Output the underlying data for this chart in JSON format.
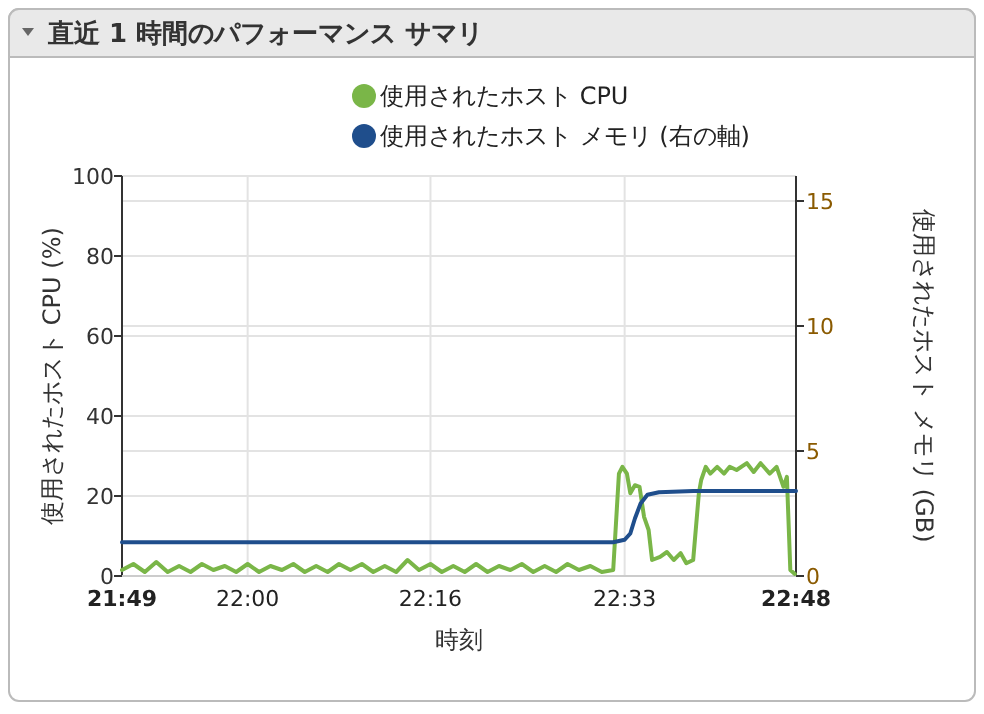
{
  "chart_data": {
    "type": "line",
    "title": "直近 1 時間のパフォーマンス サマリ",
    "xlabel": "時刻",
    "ylabel": "使用されたホスト CPU (%)",
    "y2label": "使用されたホスト メモリ (GB)",
    "xlim": [
      21.8167,
      22.8
    ],
    "xticks": [
      {
        "value": 21.8167,
        "label": "21:49"
      },
      {
        "value": 22.0,
        "label": "22:00"
      },
      {
        "value": 22.2667,
        "label": "22:16"
      },
      {
        "value": 22.55,
        "label": "22:33"
      },
      {
        "value": 22.8,
        "label": "22:48"
      }
    ],
    "ylim": [
      0,
      100
    ],
    "yticks": [
      0,
      20,
      40,
      60,
      80,
      100
    ],
    "y2lim": [
      0,
      16
    ],
    "y2ticks": [
      0,
      5,
      10,
      15
    ],
    "grid": true,
    "legend": "top",
    "series": [
      {
        "name": "使用されたホスト CPU",
        "color": "#7ab648",
        "x": [
          21.8167,
          21.8333,
          21.85,
          21.8667,
          21.8833,
          21.9,
          21.9167,
          21.9333,
          21.95,
          21.9667,
          21.9833,
          22.0,
          22.0167,
          22.0333,
          22.05,
          22.0667,
          22.0833,
          22.1,
          22.1167,
          22.1333,
          22.15,
          22.1667,
          22.1833,
          22.2,
          22.2167,
          22.2333,
          22.25,
          22.2667,
          22.2833,
          22.3,
          22.3167,
          22.3333,
          22.35,
          22.3667,
          22.3833,
          22.4,
          22.4167,
          22.4333,
          22.45,
          22.4667,
          22.4833,
          22.5,
          22.5167,
          22.5333,
          22.5417,
          22.5467,
          22.5533,
          22.5583,
          22.565,
          22.5717,
          22.5783,
          22.585,
          22.59,
          22.6017,
          22.6117,
          22.6217,
          22.6317,
          22.64,
          22.65,
          22.6583,
          22.6617,
          22.6683,
          22.675,
          22.685,
          22.695,
          22.7033,
          22.7133,
          22.7283,
          22.7383,
          22.7483,
          22.7617,
          22.7717,
          22.7817,
          22.7867,
          22.7917,
          22.7983
        ],
        "values": [
          1.5,
          3,
          1,
          3.5,
          1,
          2.5,
          1,
          3,
          1.5,
          2.5,
          1,
          3,
          1,
          2.5,
          1.5,
          3,
          1,
          2.5,
          1,
          3,
          1.5,
          3,
          1,
          2.5,
          1,
          4,
          1.5,
          3,
          1,
          2.5,
          1,
          3,
          1,
          2.5,
          1.5,
          3,
          1,
          2.5,
          1,
          3,
          1.5,
          2.5,
          1,
          1.5,
          25.6,
          27.3,
          25.6,
          20.7,
          22.7,
          22.3,
          14.8,
          11.5,
          4,
          4.8,
          6,
          4,
          5.7,
          3.2,
          4,
          20.7,
          24,
          27.3,
          25.6,
          27.3,
          25.6,
          27.3,
          26.5,
          28.2,
          26,
          28.2,
          25.6,
          27.3,
          22.3,
          24.8,
          1.5,
          0.5
        ]
      },
      {
        "name": "使用されたホスト メモリ (右の軸)",
        "color": "#1f4e8c",
        "axis": "y2",
        "x": [
          21.8167,
          22.5333,
          22.55,
          22.5583,
          22.565,
          22.5733,
          22.5833,
          22.6,
          22.65,
          22.8
        ],
        "values": [
          1.35,
          1.35,
          1.45,
          1.7,
          2.3,
          2.9,
          3.25,
          3.35,
          3.4,
          3.4
        ]
      }
    ]
  }
}
